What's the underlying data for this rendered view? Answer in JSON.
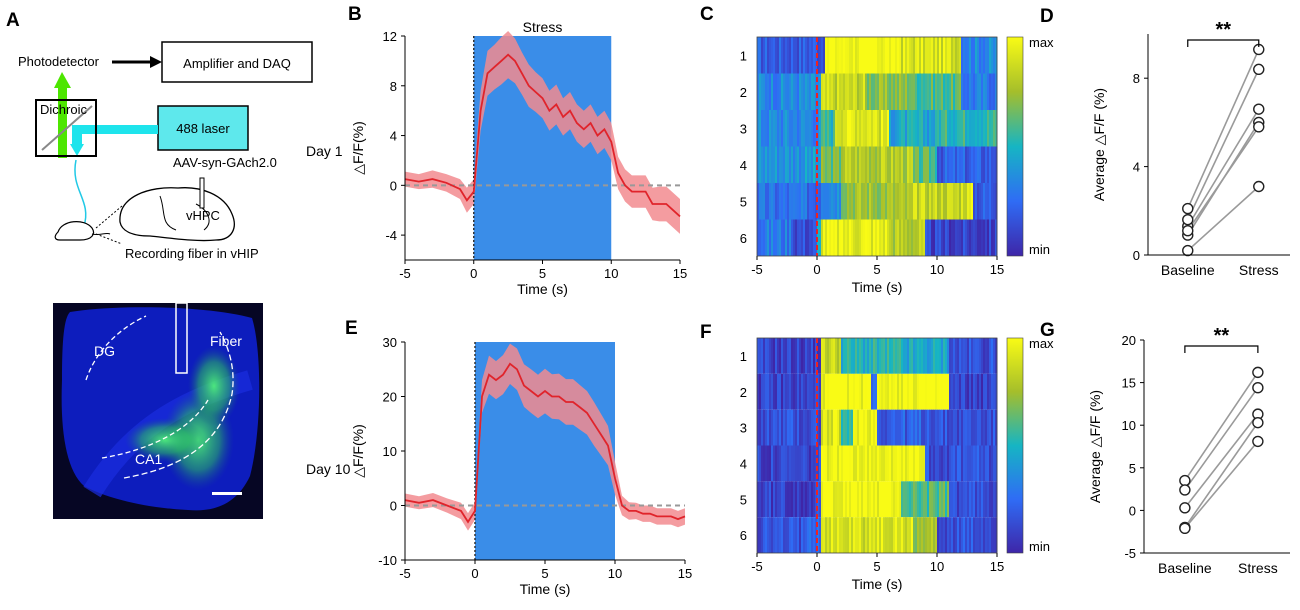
{
  "panel_labels": [
    "A",
    "B",
    "C",
    "D",
    "E",
    "F",
    "G"
  ],
  "setup": {
    "photodetector": "Photodetector",
    "amplifier": "Amplifier and DAQ",
    "dichroic": "Dichroic",
    "laser": "488  laser",
    "virus": "AAV-syn-GAch2.0",
    "region": "vHPC",
    "fiber_caption": "Recording fiber in vHIP"
  },
  "histology": {
    "dg": "DG",
    "ca1": "CA1",
    "fiber": "Fiber"
  },
  "day_labels": {
    "day1": "Day 1",
    "day10": "Day 10"
  },
  "colors": {
    "trace": "#e0242b",
    "band": "#f28b8f",
    "stress_block": "#3a8de8",
    "dashed": "#999999"
  },
  "chart_data": [
    {
      "panel": "B",
      "type": "line",
      "title": "Stress",
      "xlabel": "Time (s)",
      "ylabel": "△F/F(%)",
      "xlim": [
        -5,
        15
      ],
      "ylim": [
        -6,
        12
      ],
      "xticks": [
        "-5",
        "0",
        "5",
        "10",
        "15"
      ],
      "yticks": [
        "-4",
        "0",
        "4",
        "8",
        "12"
      ],
      "stress_interval": [
        0,
        10
      ],
      "baseline": 0,
      "x": [
        -5,
        -4,
        -3,
        -2,
        -1,
        -0.5,
        0,
        0.5,
        1,
        1.5,
        2,
        2.5,
        3,
        3.5,
        4,
        4.5,
        5,
        5.5,
        6,
        6.5,
        7,
        7.5,
        8,
        8.5,
        9,
        9.5,
        10,
        10.5,
        11,
        11.5,
        12,
        12.5,
        13,
        13.5,
        14,
        14.5,
        15
      ],
      "y": [
        0.5,
        0.3,
        0.5,
        0.2,
        -0.3,
        -1.2,
        -0.5,
        6,
        9,
        9.5,
        10,
        10.5,
        10,
        9,
        8,
        7.5,
        7,
        6,
        6.5,
        5.5,
        6,
        5,
        4.5,
        5,
        4,
        4.5,
        3.5,
        1,
        0,
        -0.5,
        -0.5,
        -0.5,
        -1.5,
        -1.5,
        -1.5,
        -2,
        -2.5
      ],
      "error": [
        0.6,
        0.6,
        0.7,
        0.7,
        0.8,
        1,
        1,
        1.6,
        1.8,
        1.8,
        1.9,
        1.9,
        1.8,
        1.7,
        1.7,
        1.6,
        1.6,
        1.6,
        1.6,
        1.5,
        1.5,
        1.5,
        1.5,
        1.5,
        1.5,
        1.5,
        1.5,
        1.3,
        1.3,
        1.3,
        1.3,
        1.3,
        1.3,
        1.4,
        1.4,
        1.4,
        1.4
      ]
    },
    {
      "panel": "C",
      "type": "heatmap",
      "xlabel": "Time (s)",
      "xlim": [
        -5,
        15
      ],
      "xticks": [
        "-5",
        "0",
        "5",
        "10",
        "15"
      ],
      "rows": [
        "1",
        "2",
        "3",
        "4",
        "5",
        "6"
      ],
      "colorbar": [
        "max",
        "min"
      ],
      "segments": [
        [
          [
            -5,
            0.2
          ],
          [
            0.6,
            0.6
          ],
          [
            0.6,
            1
          ],
          [
            7,
            0.9
          ],
          [
            12,
            0.35
          ],
          [
            15,
            0.45
          ]
        ],
        [
          [
            -5,
            0.35
          ],
          [
            0.3,
            0.4
          ],
          [
            0.4,
            0.85
          ],
          [
            4,
            0.7
          ],
          [
            8,
            0.6
          ],
          [
            12,
            0.3
          ],
          [
            15,
            0.2
          ]
        ],
        [
          [
            -5,
            0.35
          ],
          [
            0.4,
            0.55
          ],
          [
            1.5,
            0.95
          ],
          [
            5,
            0.9
          ],
          [
            6,
            0.45
          ],
          [
            10,
            0.55
          ],
          [
            15,
            0.35
          ]
        ],
        [
          [
            -5,
            0.4
          ],
          [
            0.4,
            0.65
          ],
          [
            2,
            0.8
          ],
          [
            8,
            0.6
          ],
          [
            10,
            0.2
          ],
          [
            15,
            0.1
          ]
        ],
        [
          [
            -5,
            0.25
          ],
          [
            0.4,
            0.4
          ],
          [
            2,
            0.75
          ],
          [
            8,
            0.85
          ],
          [
            12,
            0.9
          ],
          [
            13,
            0.2
          ],
          [
            15,
            0.15
          ]
        ],
        [
          [
            -5,
            0.3
          ],
          [
            -2,
            0.15
          ],
          [
            0,
            0.45
          ],
          [
            0.4,
            0.95
          ],
          [
            6,
            0.8
          ],
          [
            9,
            0.1
          ],
          [
            15,
            0.05
          ]
        ]
      ]
    },
    {
      "panel": "D",
      "type": "scatter",
      "ylabel": "Average △F/F (%)",
      "categories": [
        "Baseline",
        "Stress"
      ],
      "ylim": [
        0,
        10
      ],
      "yticks": [
        "0",
        "4",
        "8"
      ],
      "significance": "**",
      "pairs": [
        [
          0.2,
          3.1
        ],
        [
          0.9,
          6.0
        ],
        [
          1.3,
          6.6
        ],
        [
          1.6,
          8.4
        ],
        [
          2.1,
          9.3
        ],
        [
          1.1,
          5.8
        ]
      ]
    },
    {
      "panel": "E",
      "type": "line",
      "xlabel": "Time (s)",
      "ylabel": "△F/F(%)",
      "xlim": [
        -5,
        15
      ],
      "ylim": [
        -10,
        30
      ],
      "xticks": [
        "-5",
        "0",
        "5",
        "10",
        "15"
      ],
      "yticks": [
        "-10",
        "0",
        "10",
        "20",
        "30"
      ],
      "stress_interval": [
        0,
        10
      ],
      "baseline": 0,
      "x": [
        -5,
        -4,
        -3,
        -2,
        -1,
        -0.5,
        0,
        0.5,
        1,
        1.5,
        2,
        2.5,
        3,
        3.5,
        4,
        4.5,
        5,
        5.5,
        6,
        6.5,
        7,
        7.5,
        8,
        8.5,
        9,
        9.5,
        10,
        10.5,
        11,
        11.5,
        12,
        12.5,
        13,
        13.5,
        14,
        14.5,
        15
      ],
      "y": [
        1,
        0.5,
        1,
        0,
        -1,
        -3,
        -1,
        20,
        24,
        23,
        24,
        26,
        25,
        22,
        21,
        20,
        21,
        20,
        20,
        19,
        19,
        18,
        17,
        15,
        13,
        11,
        5,
        0,
        -1,
        -1,
        -1.5,
        -1.5,
        -2,
        -2,
        -2,
        -2.5,
        -2
      ],
      "error": [
        1.2,
        1.2,
        1.3,
        1.3,
        1.5,
        1.6,
        1.6,
        3,
        3.5,
        3.5,
        3.6,
        3.7,
        3.8,
        3.9,
        4,
        4,
        4.1,
        4.1,
        4.2,
        4.2,
        4.2,
        4.1,
        4,
        4,
        3.8,
        3.6,
        3,
        1.8,
        1.6,
        1.5,
        1.5,
        1.5,
        1.5,
        1.5,
        1.5,
        1.5,
        1.5
      ]
    },
    {
      "panel": "F",
      "type": "heatmap",
      "xlabel": "Time (s)",
      "xlim": [
        -5,
        15
      ],
      "xticks": [
        "-5",
        "0",
        "5",
        "10",
        "15"
      ],
      "rows": [
        "1",
        "2",
        "3",
        "4",
        "5",
        "6"
      ],
      "colorbar": [
        "max",
        "min"
      ],
      "segments": [
        [
          [
            -5,
            0.1
          ],
          [
            0.4,
            0.85
          ],
          [
            2,
            0.5
          ],
          [
            7,
            0.45
          ],
          [
            11,
            0.15
          ],
          [
            15,
            0.1
          ]
        ],
        [
          [
            -5,
            0.1
          ],
          [
            0.4,
            1
          ],
          [
            4.5,
            0.3
          ],
          [
            5,
            1
          ],
          [
            11,
            0.1
          ],
          [
            15,
            0.05
          ]
        ],
        [
          [
            -5,
            0.15
          ],
          [
            0.4,
            0.9
          ],
          [
            2,
            0.5
          ],
          [
            3,
            1
          ],
          [
            5,
            0.2
          ],
          [
            10,
            0.15
          ],
          [
            15,
            0.1
          ]
        ],
        [
          [
            -5,
            0.1
          ],
          [
            0.4,
            1
          ],
          [
            9,
            0.15
          ],
          [
            15,
            0.25
          ]
        ],
        [
          [
            -5,
            0.1
          ],
          [
            0.4,
            1
          ],
          [
            7,
            0.6
          ],
          [
            11,
            0.15
          ],
          [
            15,
            0.3
          ]
        ],
        [
          [
            -5,
            0.15
          ],
          [
            -1,
            0.3
          ],
          [
            0.4,
            0.9
          ],
          [
            8,
            0.75
          ],
          [
            10,
            0.15
          ],
          [
            15,
            0.1
          ]
        ]
      ]
    },
    {
      "panel": "G",
      "type": "scatter",
      "ylabel": "Average △F/F (%)",
      "categories": [
        "Baseline",
        "Stress"
      ],
      "ylim": [
        -5,
        20
      ],
      "yticks": [
        "-5",
        "0",
        "5",
        "10",
        "15",
        "20"
      ],
      "significance": "**",
      "pairs": [
        [
          3.5,
          16.2
        ],
        [
          2.4,
          14.4
        ],
        [
          0.3,
          11.3
        ],
        [
          -2.0,
          10.3
        ],
        [
          -2.1,
          8.1
        ]
      ]
    }
  ]
}
